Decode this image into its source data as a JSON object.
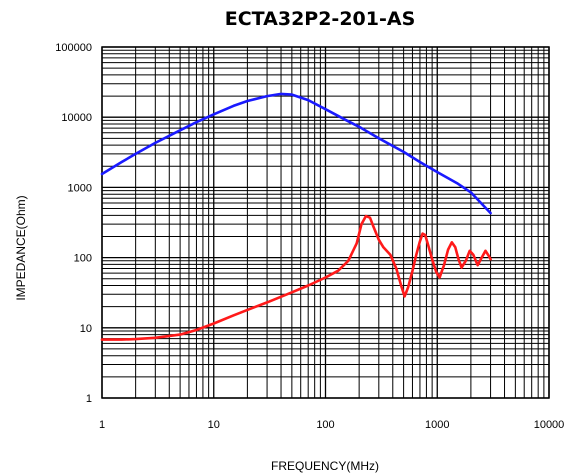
{
  "chart_data": {
    "type": "line",
    "title": "ECTA32P2-201-AS",
    "xlabel": "FREQUENCY(MHz)",
    "ylabel": "IMPEDANCE(Ohm)",
    "xscale": "log",
    "yscale": "log",
    "xlim": [
      1,
      10000
    ],
    "ylim": [
      1,
      100000
    ],
    "grid": true,
    "legend": "none",
    "x_ticks": [
      "1",
      "10",
      "100",
      "1000",
      "10000"
    ],
    "y_ticks": [
      "1",
      "10",
      "100",
      "1000",
      "10000",
      "100000"
    ],
    "series": [
      {
        "color": "#1a1aff",
        "points": [
          [
            1,
            1550
          ],
          [
            1.5,
            2300
          ],
          [
            2,
            3000
          ],
          [
            3,
            4300
          ],
          [
            5,
            6500
          ],
          [
            7,
            8500
          ],
          [
            10,
            11000
          ],
          [
            15,
            14500
          ],
          [
            20,
            17000
          ],
          [
            30,
            20000
          ],
          [
            40,
            21500
          ],
          [
            50,
            21000
          ],
          [
            70,
            17500
          ],
          [
            100,
            13000
          ],
          [
            150,
            9200
          ],
          [
            200,
            7300
          ],
          [
            300,
            5000
          ],
          [
            500,
            3200
          ],
          [
            700,
            2300
          ],
          [
            1000,
            1650
          ],
          [
            1500,
            1150
          ],
          [
            2000,
            850
          ],
          [
            3000,
            430
          ]
        ]
      },
      {
        "color": "#ff1a1a",
        "points": [
          [
            1,
            6.8
          ],
          [
            1.5,
            6.8
          ],
          [
            2,
            6.9
          ],
          [
            3,
            7.2
          ],
          [
            5,
            8.0
          ],
          [
            7,
            9.3
          ],
          [
            10,
            11.5
          ],
          [
            15,
            15
          ],
          [
            20,
            18
          ],
          [
            30,
            23
          ],
          [
            50,
            32
          ],
          [
            70,
            40
          ],
          [
            100,
            52
          ],
          [
            130,
            65
          ],
          [
            160,
            90
          ],
          [
            190,
            160
          ],
          [
            210,
            300
          ],
          [
            230,
            390
          ],
          [
            250,
            370
          ],
          [
            270,
            270
          ],
          [
            300,
            180
          ],
          [
            330,
            140
          ],
          [
            380,
            110
          ],
          [
            430,
            70
          ],
          [
            480,
            38
          ],
          [
            510,
            28
          ],
          [
            550,
            38
          ],
          [
            600,
            65
          ],
          [
            650,
            110
          ],
          [
            700,
            170
          ],
          [
            740,
            220
          ],
          [
            780,
            210
          ],
          [
            830,
            150
          ],
          [
            900,
            95
          ],
          [
            980,
            62
          ],
          [
            1050,
            52
          ],
          [
            1150,
            78
          ],
          [
            1250,
            130
          ],
          [
            1350,
            165
          ],
          [
            1450,
            140
          ],
          [
            1550,
            95
          ],
          [
            1650,
            72
          ],
          [
            1800,
            90
          ],
          [
            1950,
            125
          ],
          [
            2100,
            110
          ],
          [
            2300,
            78
          ],
          [
            2500,
            100
          ],
          [
            2700,
            125
          ],
          [
            2900,
            105
          ],
          [
            3000,
            95
          ]
        ]
      }
    ]
  }
}
